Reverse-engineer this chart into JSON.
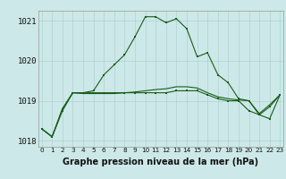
{
  "bg_color": "#cce8e8",
  "grid_color": "#aacccc",
  "line_color": "#1a5c1a",
  "title": "Graphe pression niveau de la mer (hPa)",
  "ylabel_fontsize": 6.5,
  "title_fontsize": 7.0,
  "hours": [
    0,
    1,
    2,
    3,
    4,
    5,
    6,
    7,
    8,
    9,
    10,
    11,
    12,
    13,
    14,
    15,
    16,
    17,
    18,
    19,
    20,
    21,
    22,
    23
  ],
  "series1": [
    1018.3,
    1018.1,
    1018.75,
    1019.2,
    1019.2,
    1019.25,
    1019.65,
    1019.9,
    1020.15,
    1020.6,
    1021.1,
    1021.1,
    1020.95,
    1021.05,
    1020.8,
    1020.1,
    1020.2,
    1019.65,
    1019.45,
    1019.05,
    1019.0,
    1018.65,
    1018.55,
    1019.15
  ],
  "series2": [
    1018.3,
    1018.1,
    1018.8,
    1019.2,
    1019.2,
    1019.2,
    1019.2,
    1019.2,
    1019.2,
    1019.2,
    1019.2,
    1019.2,
    1019.2,
    1019.25,
    1019.25,
    1019.25,
    1019.15,
    1019.05,
    1019.0,
    1019.0,
    1018.75,
    1018.65,
    1018.85,
    1019.15
  ],
  "series3": [
    1018.3,
    1018.1,
    1018.8,
    1019.2,
    1019.18,
    1019.18,
    1019.18,
    1019.18,
    1019.2,
    1019.22,
    1019.25,
    1019.28,
    1019.3,
    1019.35,
    1019.35,
    1019.32,
    1019.2,
    1019.1,
    1019.05,
    1019.02,
    1019.0,
    1018.68,
    1018.9,
    1019.15
  ],
  "ylim": [
    1017.85,
    1021.25
  ],
  "yticks": [
    1018,
    1019,
    1020,
    1021
  ],
  "xticks": [
    0,
    1,
    2,
    3,
    4,
    5,
    6,
    7,
    8,
    9,
    10,
    11,
    12,
    13,
    14,
    15,
    16,
    17,
    18,
    19,
    20,
    21,
    22,
    23
  ]
}
